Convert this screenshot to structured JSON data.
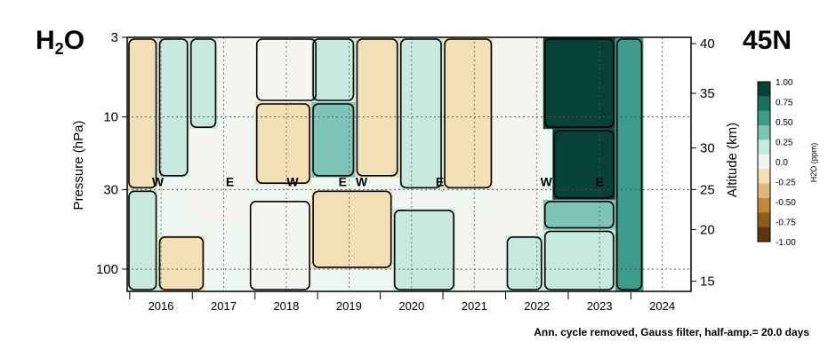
{
  "chart_data": {
    "type": "heatmap",
    "title": "H2O",
    "title_main": "H",
    "title_sub": "2",
    "title_tail": "O",
    "region_label": "45N",
    "ylabel_left": "Pressure (hPa)",
    "ylabel_right": "Altitude (km)",
    "footnote": "Ann. cycle removed, Gauss filter, half-amp.= 20.0 days",
    "x_years": [
      "2016",
      "2017",
      "2018",
      "2019",
      "2020",
      "2021",
      "2022",
      "2023",
      "2024"
    ],
    "x_range": [
      2015.96,
      2024.96
    ],
    "pressure_ticks": [
      {
        "value": 3,
        "label": "3"
      },
      {
        "value": 10,
        "label": "10"
      },
      {
        "value": 30,
        "label": "30"
      },
      {
        "value": 100,
        "label": "100"
      }
    ],
    "pressure_range": [
      3,
      140
    ],
    "altitude_ticks": [
      {
        "value": 15,
        "label": "15",
        "p": 120
      },
      {
        "value": 20,
        "label": "20",
        "p": 55
      },
      {
        "value": 25,
        "label": "25",
        "p": 30
      },
      {
        "value": 30,
        "label": "30",
        "p": 16
      },
      {
        "value": 35,
        "label": "35",
        "p": 7
      },
      {
        "value": 40,
        "label": "40",
        "p": 3.3
      }
    ],
    "colorbar": {
      "label": "H2O (ppm)",
      "range": [
        -1.0,
        1.0
      ],
      "ticks": [
        "1.00",
        "0.75",
        "0.50",
        "0.25",
        "0.0",
        "-0.25",
        "-0.50",
        "-0.75",
        "-1.00"
      ],
      "colors": [
        "#08403a",
        "#1a6e62",
        "#3d9a8c",
        "#7fc4b8",
        "#c7e9e0",
        "#f5f5f0",
        "#f3dfb6",
        "#dfb77a",
        "#bf8a3e",
        "#8f5a1d",
        "#5e3510"
      ]
    },
    "qbo_markers": [
      {
        "label": "W",
        "x": 2016.45
      },
      {
        "label": "E",
        "x": 2017.6
      },
      {
        "label": "W",
        "x": 2018.6
      },
      {
        "label": "E",
        "x": 2019.4
      },
      {
        "label": "W",
        "x": 2019.7
      },
      {
        "label": "E",
        "x": 2020.95
      },
      {
        "label": "W",
        "x": 2022.65
      },
      {
        "label": "E",
        "x": 2023.5
      }
    ],
    "qbo_marker_pressure": 30,
    "hlines_pressure": [
      10,
      30,
      100
    ],
    "anomaly_bands": [
      {
        "x0": 2015.96,
        "x1": 2016.45,
        "p0": 3,
        "p1": 30,
        "value": -0.15
      },
      {
        "x0": 2015.96,
        "x1": 2016.45,
        "p0": 30,
        "p1": 140,
        "value": 0.12
      },
      {
        "x0": 2016.45,
        "x1": 2016.95,
        "p0": 3,
        "p1": 25,
        "value": 0.18
      },
      {
        "x0": 2016.45,
        "x1": 2017.2,
        "p0": 60,
        "p1": 140,
        "value": -0.18
      },
      {
        "x0": 2016.95,
        "x1": 2017.4,
        "p0": 3,
        "p1": 12,
        "value": 0.12
      },
      {
        "x0": 2016.95,
        "x1": 2017.9,
        "p0": 12,
        "p1": 50,
        "value": 0.08
      },
      {
        "x0": 2017.4,
        "x1": 2018.0,
        "p0": 3,
        "p1": 10,
        "value": 0.05
      },
      {
        "x0": 2018.0,
        "x1": 2018.9,
        "p0": 8,
        "p1": 28,
        "value": -0.2
      },
      {
        "x0": 2018.0,
        "x1": 2019.0,
        "p0": 3,
        "p1": 8,
        "value": 0.1
      },
      {
        "x0": 2017.9,
        "x1": 2018.9,
        "p0": 35,
        "p1": 140,
        "value": 0.1
      },
      {
        "x0": 2018.9,
        "x1": 2019.6,
        "p0": 8,
        "p1": 25,
        "value": 0.35
      },
      {
        "x0": 2018.9,
        "x1": 2019.6,
        "p0": 3,
        "p1": 8,
        "value": 0.12
      },
      {
        "x0": 2018.9,
        "x1": 2020.2,
        "p0": 30,
        "p1": 100,
        "value": -0.15
      },
      {
        "x0": 2019.6,
        "x1": 2020.3,
        "p0": 3,
        "p1": 25,
        "value": -0.1
      },
      {
        "x0": 2020.3,
        "x1": 2021.0,
        "p0": 3,
        "p1": 30,
        "value": 0.15
      },
      {
        "x0": 2020.2,
        "x1": 2021.2,
        "p0": 40,
        "p1": 140,
        "value": 0.12
      },
      {
        "x0": 2021.0,
        "x1": 2021.8,
        "p0": 3,
        "p1": 30,
        "value": -0.12
      },
      {
        "x0": 2021.2,
        "x1": 2022.0,
        "p0": 40,
        "p1": 140,
        "value": -0.05
      },
      {
        "x0": 2021.8,
        "x1": 2022.6,
        "p0": 3,
        "p1": 60,
        "value": 0.08
      },
      {
        "x0": 2022.0,
        "x1": 2022.6,
        "p0": 60,
        "p1": 140,
        "value": 0.12
      },
      {
        "x0": 2022.6,
        "x1": 2023.75,
        "p0": 3,
        "p1": 12,
        "value": 1.0
      },
      {
        "x0": 2022.75,
        "x1": 2023.75,
        "p0": 12,
        "p1": 35,
        "value": 0.95
      },
      {
        "x0": 2022.6,
        "x1": 2023.75,
        "p0": 35,
        "p1": 55,
        "value": 0.5
      },
      {
        "x0": 2022.6,
        "x1": 2023.75,
        "p0": 55,
        "p1": 140,
        "value": 0.15
      },
      {
        "x0": 2023.75,
        "x1": 2024.2,
        "p0": 3,
        "p1": 140,
        "value": 0.6
      },
      {
        "x0": 2024.2,
        "x1": 2024.96,
        "p0": 3,
        "p1": 140,
        "value": 0.0
      }
    ]
  }
}
